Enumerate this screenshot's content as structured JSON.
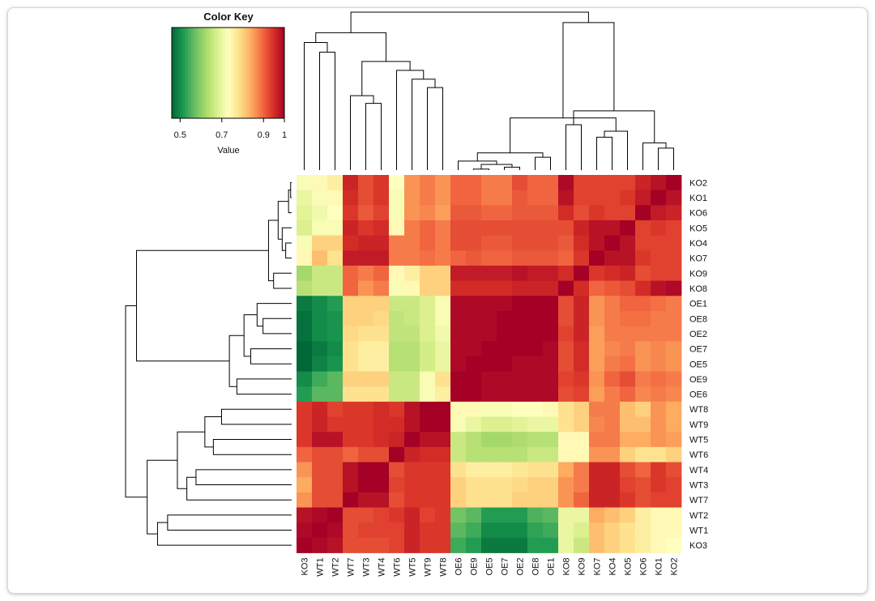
{
  "chart_data": {
    "type": "heatmap",
    "title": "",
    "row_labels": [
      "KO2",
      "KO1",
      "KO6",
      "KO5",
      "KO4",
      "KO7",
      "KO9",
      "KO8",
      "OE1",
      "OE8",
      "OE2",
      "OE7",
      "OE5",
      "OE9",
      "OE6",
      "WT8",
      "WT9",
      "WT5",
      "WT6",
      "WT4",
      "WT3",
      "WT7",
      "WT2",
      "WT1",
      "KO3"
    ],
    "col_labels": [
      "KO3",
      "WT1",
      "WT2",
      "WT7",
      "WT3",
      "WT4",
      "WT6",
      "WT5",
      "WT9",
      "WT8",
      "OE6",
      "OE9",
      "OE5",
      "OE7",
      "OE2",
      "OE8",
      "OE1",
      "KO8",
      "KO9",
      "KO7",
      "KO4",
      "KO5",
      "KO6",
      "KO1",
      "KO2"
    ],
    "values": [
      [
        0.72,
        0.74,
        0.76,
        0.96,
        0.92,
        0.94,
        0.73,
        0.86,
        0.88,
        0.86,
        0.9,
        0.9,
        0.88,
        0.88,
        0.92,
        0.9,
        0.9,
        0.99,
        0.93,
        0.93,
        0.93,
        0.93,
        0.96,
        0.98,
        1.0
      ],
      [
        0.7,
        0.72,
        0.74,
        0.95,
        0.92,
        0.94,
        0.72,
        0.86,
        0.88,
        0.86,
        0.9,
        0.9,
        0.88,
        0.88,
        0.91,
        0.9,
        0.9,
        0.98,
        0.93,
        0.93,
        0.93,
        0.94,
        0.97,
        1.0,
        0.98
      ],
      [
        0.69,
        0.71,
        0.73,
        0.94,
        0.91,
        0.93,
        0.72,
        0.86,
        0.87,
        0.85,
        0.91,
        0.91,
        0.9,
        0.9,
        0.91,
        0.91,
        0.91,
        0.95,
        0.92,
        0.94,
        0.93,
        0.93,
        1.0,
        0.97,
        0.96
      ],
      [
        0.68,
        0.72,
        0.72,
        0.96,
        0.94,
        0.95,
        0.74,
        0.88,
        0.9,
        0.88,
        0.92,
        0.92,
        0.92,
        0.92,
        0.92,
        0.92,
        0.92,
        0.92,
        0.96,
        0.98,
        0.98,
        1.0,
        0.93,
        0.94,
        0.93
      ],
      [
        0.72,
        0.8,
        0.8,
        0.95,
        0.96,
        0.96,
        0.88,
        0.88,
        0.9,
        0.88,
        0.92,
        0.92,
        0.91,
        0.91,
        0.92,
        0.92,
        0.92,
        0.91,
        0.95,
        0.98,
        1.0,
        0.98,
        0.93,
        0.93,
        0.93
      ],
      [
        0.74,
        0.82,
        0.78,
        0.97,
        0.97,
        0.97,
        0.88,
        0.88,
        0.89,
        0.88,
        0.9,
        0.91,
        0.9,
        0.9,
        0.91,
        0.91,
        0.91,
        0.9,
        0.94,
        1.0,
        0.98,
        0.98,
        0.94,
        0.93,
        0.93
      ],
      [
        0.62,
        0.66,
        0.66,
        0.9,
        0.88,
        0.9,
        0.74,
        0.76,
        0.8,
        0.8,
        0.97,
        0.97,
        0.97,
        0.97,
        0.98,
        0.97,
        0.97,
        0.95,
        1.0,
        0.94,
        0.95,
        0.96,
        0.92,
        0.93,
        0.93
      ],
      [
        0.64,
        0.66,
        0.66,
        0.9,
        0.86,
        0.88,
        0.72,
        0.74,
        0.8,
        0.8,
        0.95,
        0.95,
        0.95,
        0.95,
        0.96,
        0.96,
        0.96,
        1.0,
        0.95,
        0.9,
        0.91,
        0.92,
        0.95,
        0.98,
        0.99
      ],
      [
        0.48,
        0.5,
        0.52,
        0.8,
        0.8,
        0.8,
        0.66,
        0.66,
        0.68,
        0.72,
        0.99,
        0.99,
        0.99,
        0.99,
        1.0,
        1.0,
        1.0,
        0.92,
        0.96,
        0.86,
        0.88,
        0.9,
        0.9,
        0.89,
        0.88
      ],
      [
        0.47,
        0.5,
        0.51,
        0.8,
        0.8,
        0.79,
        0.65,
        0.66,
        0.68,
        0.72,
        0.99,
        0.99,
        0.99,
        1.0,
        1.0,
        1.0,
        1.0,
        0.92,
        0.96,
        0.86,
        0.88,
        0.89,
        0.89,
        0.88,
        0.88
      ],
      [
        0.47,
        0.5,
        0.51,
        0.79,
        0.78,
        0.78,
        0.65,
        0.65,
        0.68,
        0.71,
        0.99,
        0.99,
        0.99,
        1.0,
        1.0,
        1.0,
        1.0,
        0.93,
        0.96,
        0.85,
        0.88,
        0.88,
        0.88,
        0.88,
        0.88
      ],
      [
        0.46,
        0.48,
        0.5,
        0.78,
        0.76,
        0.76,
        0.64,
        0.64,
        0.67,
        0.7,
        0.99,
        0.99,
        1.0,
        1.0,
        1.0,
        1.0,
        0.99,
        0.92,
        0.95,
        0.85,
        0.87,
        0.88,
        0.86,
        0.87,
        0.86
      ],
      [
        0.46,
        0.49,
        0.51,
        0.78,
        0.76,
        0.76,
        0.64,
        0.64,
        0.67,
        0.7,
        0.99,
        1.0,
        1.0,
        1.0,
        0.99,
        0.99,
        0.99,
        0.92,
        0.95,
        0.85,
        0.88,
        0.89,
        0.86,
        0.87,
        0.86
      ],
      [
        0.5,
        0.54,
        0.56,
        0.8,
        0.8,
        0.8,
        0.66,
        0.66,
        0.72,
        0.78,
        1.0,
        1.0,
        0.99,
        0.99,
        0.99,
        0.99,
        0.99,
        0.93,
        0.94,
        0.86,
        0.9,
        0.92,
        0.88,
        0.89,
        0.88
      ],
      [
        0.52,
        0.56,
        0.56,
        0.78,
        0.78,
        0.78,
        0.66,
        0.66,
        0.72,
        0.76,
        1.0,
        1.0,
        0.99,
        0.99,
        0.99,
        0.99,
        0.99,
        0.92,
        0.93,
        0.85,
        0.88,
        0.9,
        0.87,
        0.88,
        0.87
      ],
      [
        0.94,
        0.96,
        0.93,
        0.94,
        0.94,
        0.95,
        0.94,
        0.98,
        1.0,
        1.0,
        0.74,
        0.74,
        0.72,
        0.72,
        0.73,
        0.73,
        0.74,
        0.78,
        0.8,
        0.88,
        0.88,
        0.82,
        0.8,
        0.86,
        0.84
      ],
      [
        0.94,
        0.96,
        0.94,
        0.94,
        0.94,
        0.95,
        0.95,
        0.98,
        1.0,
        1.0,
        0.72,
        0.7,
        0.68,
        0.68,
        0.69,
        0.7,
        0.7,
        0.78,
        0.8,
        0.87,
        0.88,
        0.82,
        0.82,
        0.86,
        0.84
      ],
      [
        0.94,
        0.98,
        0.98,
        0.94,
        0.94,
        0.95,
        0.96,
        1.0,
        0.98,
        0.98,
        0.66,
        0.64,
        0.62,
        0.62,
        0.63,
        0.64,
        0.64,
        0.74,
        0.74,
        0.88,
        0.88,
        0.84,
        0.84,
        0.86,
        0.85
      ],
      [
        0.9,
        0.92,
        0.92,
        0.9,
        0.92,
        0.92,
        1.0,
        0.96,
        0.95,
        0.95,
        0.66,
        0.64,
        0.64,
        0.64,
        0.64,
        0.66,
        0.66,
        0.74,
        0.74,
        0.86,
        0.86,
        0.8,
        0.78,
        0.78,
        0.8
      ],
      [
        0.86,
        0.92,
        0.92,
        0.98,
        1.0,
        1.0,
        0.92,
        0.94,
        0.94,
        0.94,
        0.78,
        0.76,
        0.76,
        0.76,
        0.77,
        0.78,
        0.78,
        0.84,
        0.88,
        0.96,
        0.96,
        0.92,
        0.9,
        0.94,
        0.92
      ],
      [
        0.84,
        0.92,
        0.92,
        0.98,
        1.0,
        1.0,
        0.93,
        0.94,
        0.94,
        0.94,
        0.8,
        0.78,
        0.78,
        0.78,
        0.79,
        0.8,
        0.8,
        0.86,
        0.88,
        0.96,
        0.96,
        0.93,
        0.92,
        0.94,
        0.93
      ],
      [
        0.86,
        0.92,
        0.92,
        1.0,
        0.98,
        0.98,
        0.92,
        0.94,
        0.94,
        0.94,
        0.8,
        0.78,
        0.78,
        0.78,
        0.8,
        0.8,
        0.8,
        0.86,
        0.9,
        0.96,
        0.96,
        0.94,
        0.92,
        0.93,
        0.93
      ],
      [
        0.98,
        0.99,
        1.0,
        0.92,
        0.92,
        0.93,
        0.94,
        0.96,
        0.93,
        0.94,
        0.58,
        0.56,
        0.52,
        0.52,
        0.52,
        0.55,
        0.56,
        0.7,
        0.7,
        0.84,
        0.82,
        0.8,
        0.76,
        0.74,
        0.74
      ],
      [
        0.99,
        1.0,
        0.99,
        0.92,
        0.93,
        0.93,
        0.93,
        0.96,
        0.94,
        0.94,
        0.56,
        0.54,
        0.5,
        0.5,
        0.5,
        0.53,
        0.54,
        0.7,
        0.68,
        0.82,
        0.8,
        0.78,
        0.76,
        0.74,
        0.74
      ],
      [
        1.0,
        0.99,
        0.98,
        0.92,
        0.92,
        0.92,
        0.93,
        0.96,
        0.94,
        0.94,
        0.54,
        0.52,
        0.48,
        0.48,
        0.48,
        0.52,
        0.52,
        0.7,
        0.66,
        0.82,
        0.8,
        0.78,
        0.76,
        0.74,
        0.73
      ]
    ],
    "color_key": {
      "title": "Color Key",
      "xlabel": "Value",
      "ticks": [
        "0.5",
        "0.7",
        "0.9",
        "1"
      ],
      "tick_values": [
        0.5,
        0.7,
        0.9,
        1.0
      ],
      "range": [
        0.46,
        1.0
      ],
      "colors": [
        "#006837",
        "#1a9850",
        "#66bd63",
        "#a6d96a",
        "#d9ef8b",
        "#ffffbf",
        "#fee08b",
        "#fdae61",
        "#f46d43",
        "#d73027",
        "#a50026"
      ]
    },
    "col_dendrogram": {
      "merges": [
        [
          -12,
          -13
        ],
        [
          -14,
          -15
        ],
        [
          1,
          2
        ],
        [
          -11,
          3
        ],
        [
          -16,
          -17
        ],
        [
          4,
          5
        ],
        [
          -24,
          -25
        ],
        [
          -23,
          7
        ],
        [
          -20,
          -21
        ],
        [
          -22,
          9
        ],
        [
          -19,
          -18
        ],
        [
          10,
          6
        ],
        [
          11,
          8
        ],
        [
          -5,
          -6
        ],
        [
          -4,
          14
        ],
        [
          -9,
          -10
        ],
        [
          -8,
          16
        ],
        [
          -7,
          17
        ],
        [
          15,
          18
        ],
        [
          -2,
          -3
        ],
        [
          -1,
          20
        ],
        [
          19,
          21
        ],
        [
          13,
          12
        ],
        [
          22,
          23
        ]
      ]
    },
    "row_dendrogram": {
      "merges": [
        [
          -1,
          -2
        ],
        [
          -3,
          1
        ],
        [
          -5,
          -6
        ],
        [
          -4,
          3
        ],
        [
          2,
          4
        ],
        [
          -7,
          -8
        ],
        [
          5,
          6
        ],
        [
          -10,
          -11
        ],
        [
          -9,
          8
        ],
        [
          -12,
          -13
        ],
        [
          9,
          10
        ],
        [
          -14,
          -15
        ],
        [
          11,
          12
        ],
        [
          -16,
          -17
        ],
        [
          -18,
          -19
        ],
        [
          14,
          15
        ],
        [
          -20,
          -21
        ],
        [
          -22,
          17
        ],
        [
          16,
          18
        ],
        [
          -23,
          -24
        ],
        [
          -25,
          20
        ],
        [
          19,
          21
        ],
        [
          7,
          13
        ],
        [
          23,
          22
        ]
      ]
    }
  }
}
